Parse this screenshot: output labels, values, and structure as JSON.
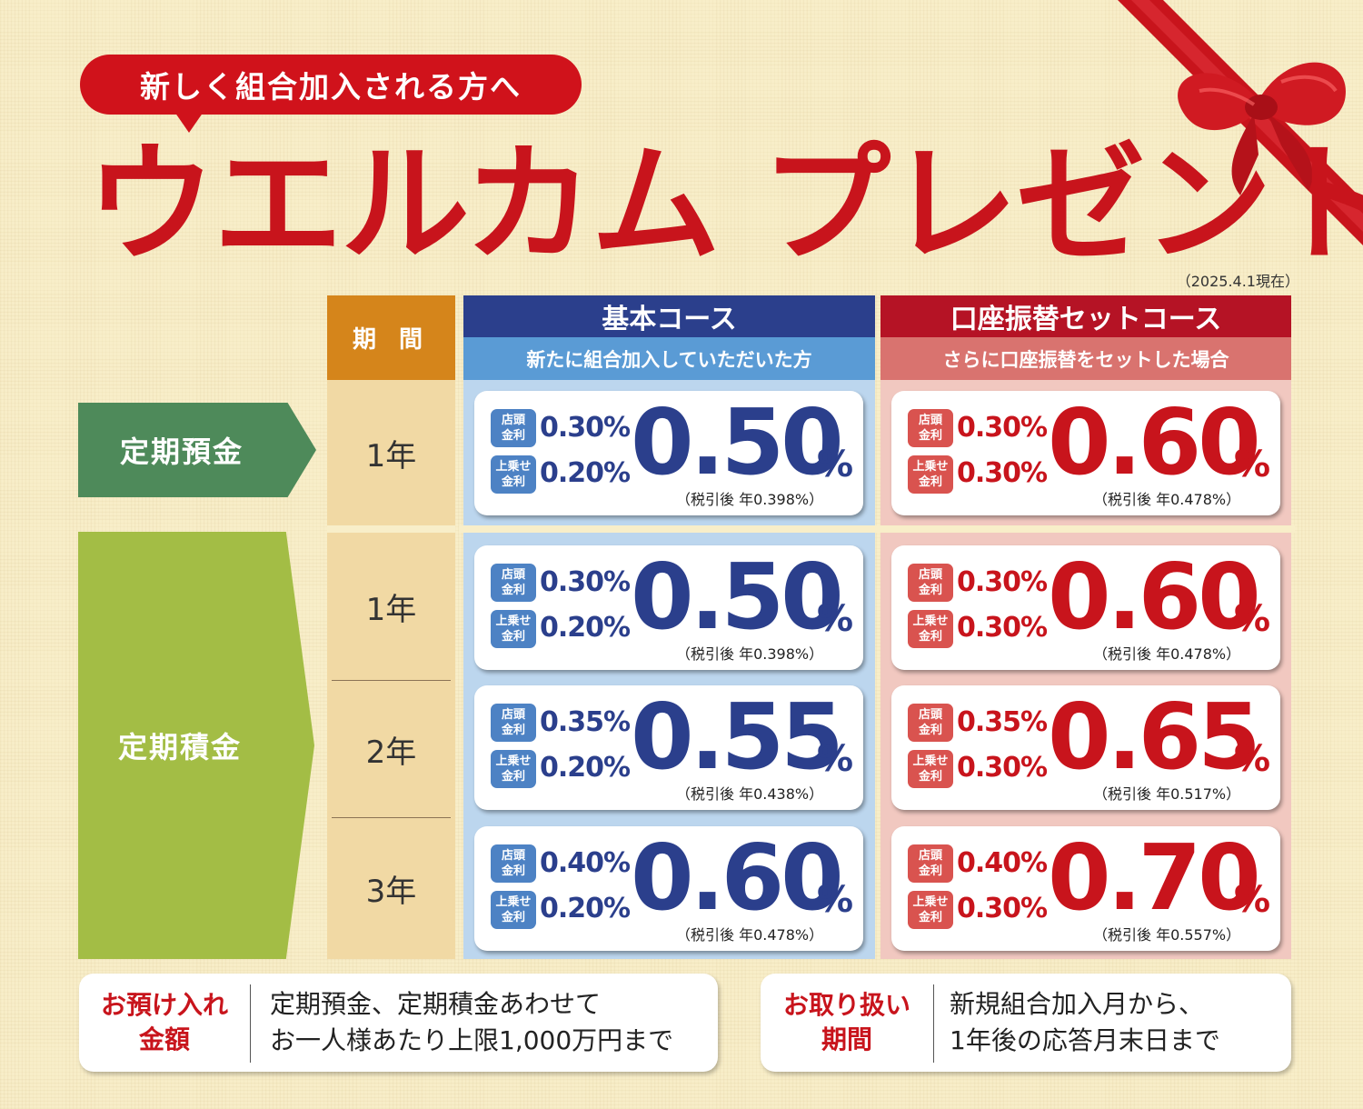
{
  "header": {
    "pill": "新しく組合加入される方へ",
    "title": "ウエルカム プレゼント",
    "as_of": "（2025.4.1現在）"
  },
  "table": {
    "period_header": "期 間",
    "courses": {
      "basic": {
        "name": "基本コース",
        "sub": "新たに組合加入していただいた方"
      },
      "set": {
        "name": "口座振替セットコース",
        "sub": "さらに口座振替をセットした場合"
      }
    },
    "badges": {
      "store_line1": "店頭",
      "store_line2": "金利",
      "bonus_line1": "上乗せ",
      "bonus_line2": "金利"
    },
    "percent_sign": "%",
    "categories": [
      {
        "name": "定期預金",
        "rows": [
          {
            "period": "1年",
            "basic": {
              "store": "0.30%",
              "bonus": "0.20%",
              "total": "0.50",
              "after_tax": "（税引後 年0.398%）"
            },
            "set": {
              "store": "0.30%",
              "bonus": "0.30%",
              "total": "0.60",
              "after_tax": "（税引後 年0.478%）"
            }
          }
        ]
      },
      {
        "name": "定期積金",
        "rows": [
          {
            "period": "1年",
            "basic": {
              "store": "0.30%",
              "bonus": "0.20%",
              "total": "0.50",
              "after_tax": "（税引後 年0.398%）"
            },
            "set": {
              "store": "0.30%",
              "bonus": "0.30%",
              "total": "0.60",
              "after_tax": "（税引後 年0.478%）"
            }
          },
          {
            "period": "2年",
            "basic": {
              "store": "0.35%",
              "bonus": "0.20%",
              "total": "0.55",
              "after_tax": "（税引後 年0.438%）"
            },
            "set": {
              "store": "0.35%",
              "bonus": "0.30%",
              "total": "0.65",
              "after_tax": "（税引後 年0.517%）"
            }
          },
          {
            "period": "3年",
            "basic": {
              "store": "0.40%",
              "bonus": "0.20%",
              "total": "0.60",
              "after_tax": "（税引後 年0.478%）"
            },
            "set": {
              "store": "0.40%",
              "bonus": "0.30%",
              "total": "0.70",
              "after_tax": "（税引後 年0.557%）"
            }
          }
        ]
      }
    ]
  },
  "info": {
    "deposit": {
      "label_line1": "お預け入れ",
      "label_line2": "金額",
      "text_line1": "定期預金、定期積金あわせて",
      "text_line2": "お一人様あたり上限1,000万円まで"
    },
    "period": {
      "label_line1": "お取り扱い",
      "label_line2": "期間",
      "text_line1": "新規組合加入月から、",
      "text_line2": "1年後の応答月末日まで"
    }
  },
  "colors": {
    "brand_red": "#c8141c",
    "basic_navy": "#2b3f8c",
    "basic_light": "#5a9bd5",
    "set_red": "#b51325",
    "set_light": "#d9736f",
    "period_orange": "#d5851b",
    "deposit_green": "#4e8a5a",
    "installment_green": "#a3bd45"
  },
  "icons": {
    "ribbon": "red-ribbon-bow-icon"
  }
}
